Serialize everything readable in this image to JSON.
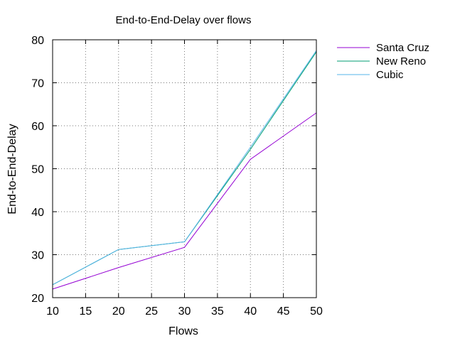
{
  "chart_data": {
    "type": "line",
    "title": "End-to-End-Delay over flows",
    "xlabel": "Flows",
    "ylabel": "End-to-End-Delay",
    "xlim": [
      10,
      50
    ],
    "ylim": [
      20,
      80
    ],
    "x_ticks": [
      10,
      15,
      20,
      25,
      30,
      35,
      40,
      45,
      50
    ],
    "y_ticks": [
      20,
      30,
      40,
      50,
      60,
      70,
      80
    ],
    "grid": true,
    "legend_position": "outside-top-right",
    "x": [
      10,
      20,
      30,
      40,
      50
    ],
    "series": [
      {
        "name": "Santa Cruz",
        "color": "#9400d3",
        "values": [
          22,
          27,
          31.7,
          52.2,
          63
        ]
      },
      {
        "name": "New Reno",
        "color": "#009e73",
        "values": [
          23,
          31.2,
          33,
          54.5,
          77.2
        ]
      },
      {
        "name": "Cubic",
        "color": "#56b4e9",
        "values": [
          23,
          31.2,
          33,
          55,
          77.5
        ]
      }
    ]
  }
}
